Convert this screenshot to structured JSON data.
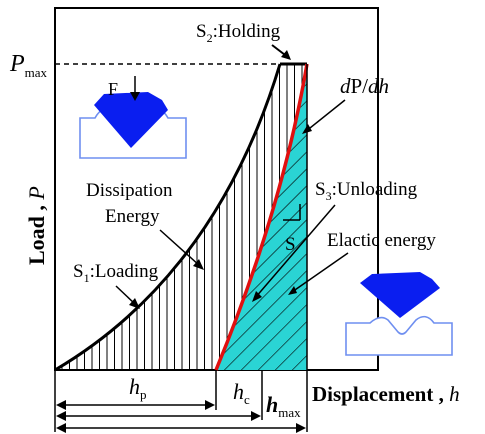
{
  "labels": {
    "pmax_main": "P",
    "pmax_sub": "max",
    "y_axis_bold": "Load",
    "y_axis_comma": " , ",
    "y_axis_italic": "P",
    "x_axis_bold": "Displacement",
    "x_axis_comma": " , ",
    "x_axis_italic": "h",
    "s2_main": "S",
    "s2_sub": "2",
    "s2_rest": ":Holding",
    "dpdh_d": "d",
    "dpdh_P": "P/",
    "dpdh_dh": "dh",
    "s3_main": "S",
    "s3_sub": "3",
    "s3_rest": ":Unloading",
    "s1_main": "S",
    "s1_sub": "1",
    "s1_rest": ":Loading",
    "s_label": "S",
    "dissipation_line1": "Dissipation",
    "dissipation_line2": "Energy",
    "elastic_energy": "Elactic energy",
    "force": "F",
    "hp_main": "h",
    "hp_sub": "p",
    "hc_main": "h",
    "hc_sub": "c",
    "hmax_main": "h",
    "hmax_sub": "max"
  },
  "colors": {
    "unloading_curve": "#e01010",
    "elastic_fill": "#2ad4d4",
    "indenter": "#0a1ef0",
    "specimen_outline": "#6f8ff0",
    "ink": "#000000"
  }
}
